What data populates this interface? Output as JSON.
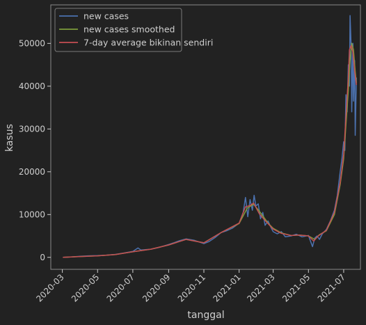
{
  "colors": {
    "background": "#222222",
    "axes_frame": "#8a8a8a",
    "text": "#cfcfcf",
    "new_cases": "#4c72b0",
    "new_cases_smoothed": "#7d9c3b",
    "seven_day_average": "#c44e52"
  },
  "chart_data": {
    "type": "line",
    "title": "",
    "xlabel": "tanggal",
    "ylabel": "kasus",
    "xlim": [
      "2020-02-10",
      "2021-07-30"
    ],
    "ylim": [
      -2800,
      59000
    ],
    "grid": false,
    "legend_position": "top-left",
    "x_ticks": [
      "2020-03",
      "2020-05",
      "2020-07",
      "2020-09",
      "2020-11",
      "2021-01",
      "2021-03",
      "2021-05",
      "2021-07"
    ],
    "y_ticks": [
      0,
      10000,
      20000,
      30000,
      40000,
      50000
    ],
    "series": [
      {
        "name": "new cases",
        "color_key": "new_cases",
        "x": [
          "2020-03-02",
          "2020-03-16",
          "2020-04-01",
          "2020-04-15",
          "2020-05-01",
          "2020-05-15",
          "2020-06-01",
          "2020-06-15",
          "2020-07-01",
          "2020-07-10",
          "2020-07-15",
          "2020-08-01",
          "2020-08-15",
          "2020-09-01",
          "2020-09-10",
          "2020-09-20",
          "2020-10-01",
          "2020-10-15",
          "2020-11-01",
          "2020-11-10",
          "2020-11-20",
          "2020-12-01",
          "2020-12-10",
          "2020-12-20",
          "2021-01-01",
          "2021-01-08",
          "2021-01-12",
          "2021-01-16",
          "2021-01-20",
          "2021-01-24",
          "2021-01-27",
          "2021-01-30",
          "2021-02-03",
          "2021-02-07",
          "2021-02-11",
          "2021-02-15",
          "2021-02-20",
          "2021-02-25",
          "2021-03-01",
          "2021-03-08",
          "2021-03-15",
          "2021-03-22",
          "2021-04-01",
          "2021-04-10",
          "2021-04-20",
          "2021-05-01",
          "2021-05-08",
          "2021-05-12",
          "2021-05-16",
          "2021-05-20",
          "2021-05-25",
          "2021-06-01",
          "2021-06-08",
          "2021-06-15",
          "2021-06-20",
          "2021-06-25",
          "2021-06-28",
          "2021-07-01",
          "2021-07-03",
          "2021-07-05",
          "2021-07-07",
          "2021-07-09",
          "2021-07-11",
          "2021-07-12",
          "2021-07-14",
          "2021-07-15",
          "2021-07-17",
          "2021-07-18",
          "2021-07-20",
          "2021-07-21",
          "2021-07-23"
        ],
        "values": [
          0,
          100,
          250,
          350,
          400,
          500,
          700,
          1000,
          1400,
          2200,
          1700,
          1900,
          2300,
          3000,
          3400,
          3900,
          4300,
          4000,
          3200,
          3700,
          4600,
          5800,
          6200,
          6800,
          8000,
          10500,
          14000,
          9500,
          13500,
          11000,
          14500,
          12000,
          12500,
          9000,
          10500,
          7500,
          8500,
          7000,
          6000,
          5500,
          6000,
          4800,
          5000,
          5400,
          4800,
          5100,
          2500,
          4500,
          5000,
          4200,
          5500,
          6500,
          8500,
          11000,
          14500,
          20000,
          23000,
          27000,
          25000,
          38000,
          34000,
          45000,
          40000,
          56500,
          49000,
          34000,
          50000,
          36500,
          46000,
          28500,
          42000
        ]
      },
      {
        "name": "new cases smoothed",
        "color_key": "new_cases_smoothed",
        "x": [
          "2020-03-02",
          "2020-04-01",
          "2020-05-01",
          "2020-06-01",
          "2020-07-01",
          "2020-08-01",
          "2020-09-01",
          "2020-10-01",
          "2020-11-01",
          "2020-12-01",
          "2021-01-01",
          "2021-01-15",
          "2021-01-26",
          "2021-02-05",
          "2021-02-20",
          "2021-03-01",
          "2021-03-15",
          "2021-04-01",
          "2021-04-15",
          "2021-05-01",
          "2021-05-12",
          "2021-05-20",
          "2021-06-01",
          "2021-06-15",
          "2021-06-25",
          "2021-07-01",
          "2021-07-05",
          "2021-07-09",
          "2021-07-12",
          "2021-07-15",
          "2021-07-18",
          "2021-07-21",
          "2021-07-23"
        ],
        "values": [
          0,
          200,
          350,
          650,
          1300,
          1900,
          2900,
          4200,
          3400,
          5800,
          7900,
          11500,
          12400,
          10800,
          8000,
          6800,
          5700,
          5100,
          5200,
          5000,
          4200,
          5300,
          6200,
          10000,
          17000,
          23000,
          31000,
          39000,
          46000,
          50000,
          48500,
          43500,
          40800
        ]
      },
      {
        "name": "7-day average bikinan sendiri",
        "color_key": "seven_day_average",
        "x": [
          "2020-03-02",
          "2020-04-01",
          "2020-05-01",
          "2020-06-01",
          "2020-07-01",
          "2020-08-01",
          "2020-09-01",
          "2020-10-01",
          "2020-11-01",
          "2020-12-01",
          "2021-01-01",
          "2021-01-12",
          "2021-01-20",
          "2021-01-26",
          "2021-02-05",
          "2021-02-15",
          "2021-03-01",
          "2021-03-15",
          "2021-04-01",
          "2021-04-15",
          "2021-05-01",
          "2021-05-10",
          "2021-05-18",
          "2021-06-01",
          "2021-06-15",
          "2021-06-25",
          "2021-07-01",
          "2021-07-05",
          "2021-07-09",
          "2021-07-11",
          "2021-07-14",
          "2021-07-17",
          "2021-07-20",
          "2021-07-23"
        ],
        "values": [
          0,
          200,
          350,
          650,
          1300,
          1900,
          2900,
          4200,
          3400,
          5800,
          8000,
          11800,
          12100,
          12700,
          10200,
          8600,
          6600,
          5600,
          5100,
          5200,
          5000,
          3800,
          5000,
          6300,
          10500,
          17500,
          24000,
          33000,
          42000,
          48500,
          49500,
          48000,
          43500,
          40300
        ]
      }
    ]
  }
}
